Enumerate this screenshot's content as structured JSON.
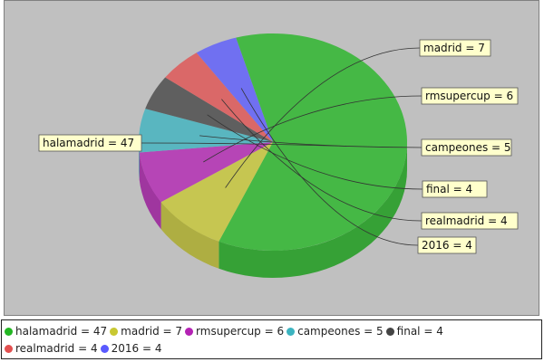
{
  "chart_data": {
    "type": "pie",
    "style": "3d",
    "categories": [
      "halamadrid",
      "madrid",
      "rmsupercup",
      "campeones",
      "final",
      "realmadrid",
      "2016"
    ],
    "values": [
      47,
      7,
      6,
      5,
      4,
      4,
      4
    ],
    "colors": [
      "#22b622",
      "#c8c832",
      "#b422b4",
      "#3cb4c0",
      "#444444",
      "#e25050",
      "#5a5aff"
    ],
    "label_texts": [
      "halamadrid = 47",
      "madrid = 7",
      "rmsupercup = 6",
      "campeones = 5",
      "final = 4",
      "realmadrid = 4",
      "2016 = 4"
    ],
    "legend_position": "bottom",
    "background": "#c0c0c0",
    "label_background": "#ffffcc"
  }
}
